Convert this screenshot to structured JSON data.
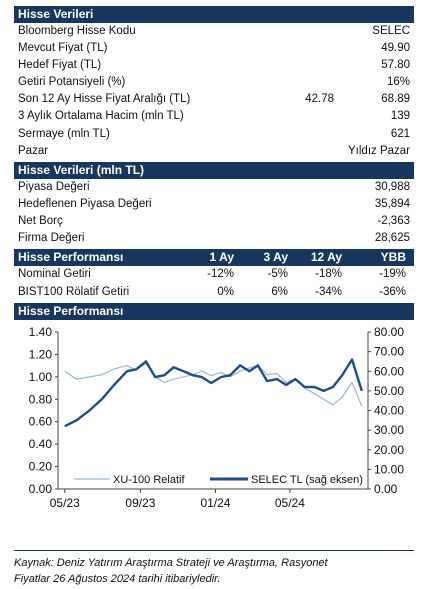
{
  "section1": {
    "title": "Hisse Verileri",
    "rows": [
      {
        "label": "Bloomberg Hisse Kodu",
        "value": "SELEC"
      },
      {
        "label": "Mevcut Fiyat (TL)",
        "value": "49.90"
      },
      {
        "label": "Hedef Fiyat (TL)",
        "value": "57.80"
      },
      {
        "label": "Getiri Potansiyeli (%)",
        "value": "16%"
      },
      {
        "label": "Son 12 Ay Hisse Fiyat Aralığı (TL)",
        "low": "42.78",
        "value": "68.89"
      },
      {
        "label": "3 Aylık Ortalama Hacim (mln TL)",
        "value": "139"
      },
      {
        "label": "Sermaye (mln TL)",
        "value": "621"
      },
      {
        "label": "Pazar",
        "value": "Yıldız Pazar"
      }
    ]
  },
  "section2": {
    "title": "Hisse Verileri (mln TL)",
    "rows": [
      {
        "label": "Piyasa Değeri",
        "value": "30,988"
      },
      {
        "label": "Hedeflenen Piyasa Değeri",
        "value": "35,894"
      },
      {
        "label": "Net Borç",
        "value": "-2,363"
      },
      {
        "label": "Firma Değeri",
        "value": "28,625"
      }
    ]
  },
  "section3": {
    "title": "Hisse Performansı",
    "columns": [
      "1 Ay",
      "3 Ay",
      "12 Ay",
      "YBB"
    ],
    "rows": [
      {
        "label": "Nominal Getiri",
        "values": [
          "-12%",
          "-5%",
          "-18%",
          "-19%"
        ]
      },
      {
        "label": "BIST100 Rölatif Getiri",
        "values": [
          "0%",
          "6%",
          "-34%",
          "-36%"
        ]
      }
    ]
  },
  "section4": {
    "title": "Hisse Performansı"
  },
  "chart_data": {
    "type": "line",
    "x_ticks": [
      "05/23",
      "09/23",
      "01/24",
      "05/24"
    ],
    "y_left": {
      "min": 0,
      "max": 1.4,
      "ticks": [
        "0.00",
        "0.20",
        "0.40",
        "0.60",
        "0.80",
        "1.00",
        "1.20",
        "1.40"
      ]
    },
    "y_right": {
      "min": 0,
      "max": 80,
      "ticks": [
        "0.00",
        "10.00",
        "20.00",
        "30.00",
        "40.00",
        "50.00",
        "60.00",
        "70.00",
        "80.00"
      ]
    },
    "legend_placement": "bottom",
    "series": [
      {
        "name": "XU-100 Relatif",
        "axis": "left",
        "color": "#9ab7dc",
        "x": [
          "2023-05-01",
          "2023-05-20",
          "2023-06-10",
          "2023-07-01",
          "2023-07-20",
          "2023-08-10",
          "2023-08-25",
          "2023-09-10",
          "2023-09-25",
          "2023-10-10",
          "2023-10-25",
          "2023-11-10",
          "2023-11-25",
          "2023-12-10",
          "2023-12-25",
          "2024-01-10",
          "2024-01-25",
          "2024-02-10",
          "2024-02-25",
          "2024-03-10",
          "2024-03-25",
          "2024-04-10",
          "2024-04-25",
          "2024-05-10",
          "2024-05-25",
          "2024-06-10",
          "2024-06-25",
          "2024-07-10",
          "2024-07-25",
          "2024-08-10",
          "2024-08-26"
        ],
        "values": [
          1.05,
          0.98,
          1.0,
          1.02,
          1.07,
          1.1,
          1.06,
          1.12,
          1.0,
          0.95,
          0.98,
          1.0,
          1.02,
          1.05,
          1.01,
          1.04,
          1.0,
          1.05,
          1.08,
          1.1,
          1.02,
          1.03,
          0.95,
          0.98,
          0.9,
          0.85,
          0.8,
          0.75,
          0.82,
          0.95,
          0.74
        ]
      },
      {
        "name": "SELEC TL (sağ eksen)",
        "axis": "right",
        "color": "#1f4e8c",
        "x": [
          "2023-05-01",
          "2023-05-20",
          "2023-06-10",
          "2023-07-01",
          "2023-07-20",
          "2023-08-10",
          "2023-08-25",
          "2023-09-10",
          "2023-09-25",
          "2023-10-10",
          "2023-10-25",
          "2023-11-10",
          "2023-11-25",
          "2023-12-10",
          "2023-12-25",
          "2024-01-10",
          "2024-01-25",
          "2024-02-10",
          "2024-02-25",
          "2024-03-10",
          "2024-03-25",
          "2024-04-10",
          "2024-04-25",
          "2024-05-10",
          "2024-05-25",
          "2024-06-10",
          "2024-06-25",
          "2024-07-10",
          "2024-07-25",
          "2024-08-10",
          "2024-08-26"
        ],
        "values": [
          32,
          35,
          40,
          46,
          53,
          60,
          61,
          65,
          57,
          58,
          62,
          60,
          58,
          57,
          54,
          57,
          58,
          63,
          60,
          63,
          55,
          56,
          53,
          56,
          52,
          52,
          50,
          52,
          58,
          66,
          50
        ]
      }
    ]
  },
  "footer": {
    "line1": "Kaynak: Deniz Yatırım Araştırma Strateji ve Araştırma, Rasyonet",
    "line2": "Fiyatlar 26 Ağustos 2024 tarihi itibariyledir."
  }
}
